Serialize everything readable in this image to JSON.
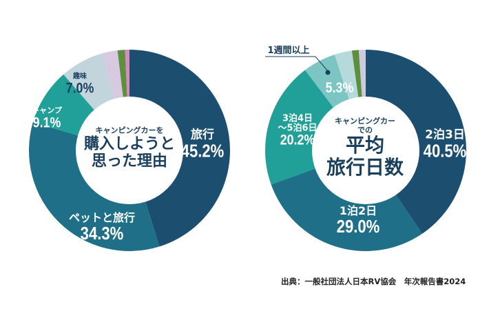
{
  "chart_data": [
    {
      "type": "pie",
      "donut": true,
      "title": "キャンピングカーを購入しようと思った理由",
      "title_lines": [
        "キャンピングカーを",
        "購入しようと",
        "思った理由"
      ],
      "slices": [
        {
          "label": "旅行",
          "value": 45.2,
          "value_text": "45.2%",
          "color": "#1b4e6f"
        },
        {
          "label": "ペットと旅行",
          "value": 34.3,
          "value_text": "34.3%",
          "color": "#1e6f87"
        },
        {
          "label": "キャンプ",
          "value": 9.1,
          "value_text": "9.1%",
          "color": "#20a098"
        },
        {
          "label": "趣味",
          "value": 7.0,
          "value_text": "7.0%",
          "color": "#c2d4dc"
        },
        {
          "label": "",
          "value": 2.5,
          "color": "#d6c9e0"
        },
        {
          "label": "",
          "value": 1.2,
          "color": "#5e8f3e"
        },
        {
          "label": "",
          "value": 0.7,
          "color": "#d58bbd"
        }
      ]
    },
    {
      "type": "pie",
      "donut": true,
      "title": "キャンピングカーでの平均旅行日数",
      "title_lines": [
        "キャンピングカー",
        "での",
        "平均",
        "旅行日数"
      ],
      "slices": [
        {
          "label": "2泊3日",
          "value": 40.5,
          "value_text": "40.5%",
          "color": "#1b4e6f"
        },
        {
          "label": "1泊2日",
          "value": 29.0,
          "value_text": "29.0%",
          "color": "#1e6f87"
        },
        {
          "label": "3泊4日〜5泊6日",
          "label_lines": [
            "3泊4日",
            "〜5泊6日"
          ],
          "value": 20.2,
          "value_text": "20.2%",
          "color": "#20a098"
        },
        {
          "label": "1週間以上",
          "value": 5.3,
          "value_text": "5.3%",
          "color": "#7cc5c3"
        },
        {
          "label": "",
          "value": 2.8,
          "color": "#b6d9dc"
        },
        {
          "label": "",
          "value": 1.1,
          "color": "#5e8f3e"
        },
        {
          "label": "",
          "value": 1.1,
          "color": "#cdc9df"
        }
      ]
    }
  ],
  "source": "出典：一般社団法人日本RV協会　年次報告書2024"
}
